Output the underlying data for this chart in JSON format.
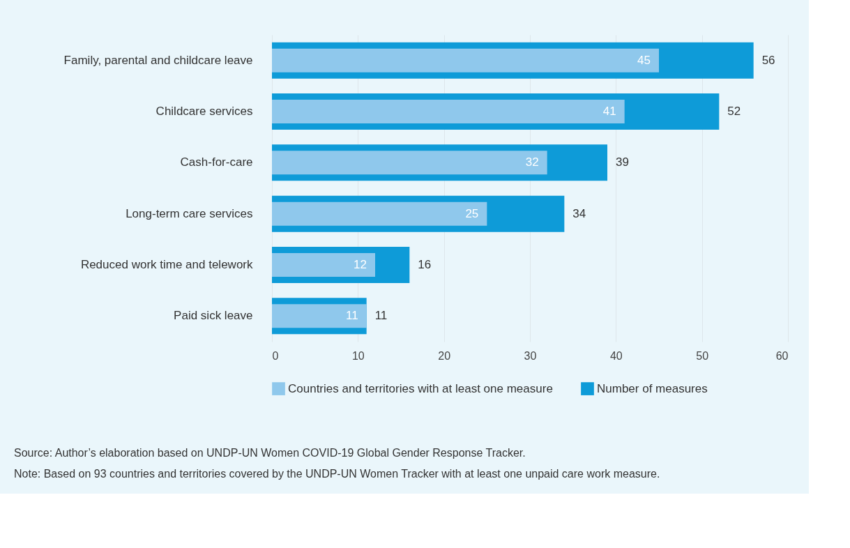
{
  "chart_data": {
    "type": "bar",
    "orientation": "horizontal",
    "categories": [
      "Family, parental and childcare leave",
      "Childcare services",
      "Cash-for-care",
      "Long-term care services",
      "Reduced work time and telework",
      "Paid sick leave"
    ],
    "series": [
      {
        "name": "Countries and territories with at least one measure",
        "color": "#8fc8ec",
        "values": [
          45,
          41,
          32,
          25,
          12,
          11
        ]
      },
      {
        "name": "Number of measures",
        "color": "#0e9bd8",
        "values": [
          56,
          52,
          39,
          34,
          16,
          11
        ]
      }
    ],
    "xlim": [
      0,
      60
    ],
    "xticks": [
      0,
      10,
      20,
      30,
      40,
      50,
      60
    ],
    "grid": "x",
    "legend": "bottom",
    "data_labels": true,
    "annotations": [
      "Source: Author’s elaboration based on UNDP-UN Women COVID-19 Global Gender Response Tracker.",
      "Note: Based on 93 countries and territories covered by the UNDP-UN Women Tracker with at least one unpaid care work measure."
    ]
  }
}
